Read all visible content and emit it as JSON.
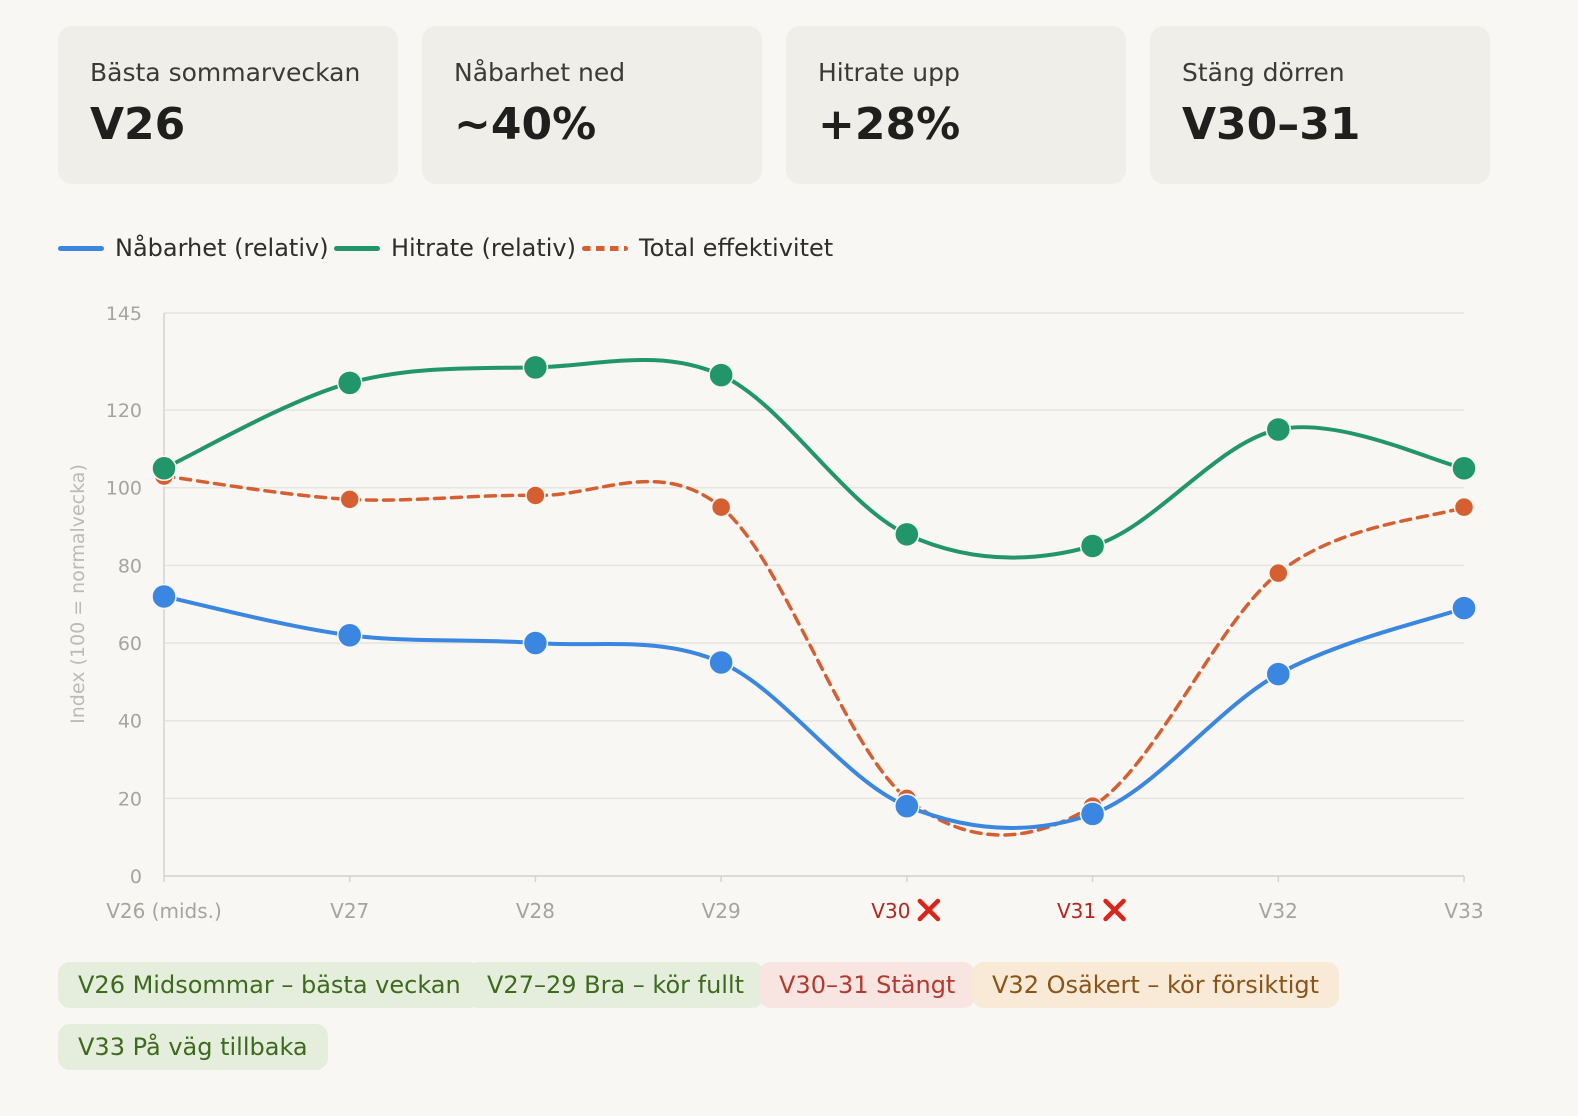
{
  "kpis": [
    {
      "label": "Bästa sommarveckan",
      "value": "V26"
    },
    {
      "label": "Nåbarhet ned",
      "value": "~40%"
    },
    {
      "label": "Hitrate upp",
      "value": "+28%"
    },
    {
      "label": "Stäng dörren",
      "value": "V30–31"
    }
  ],
  "legend": [
    {
      "label": "Nåbarhet (relativ)",
      "color": "#3a86e0",
      "style": "solid"
    },
    {
      "label": "Hitrate (relativ)",
      "color": "#23956b",
      "style": "solid"
    },
    {
      "label": "Total effektivitet",
      "color": "#d65f32",
      "style": "dashed"
    }
  ],
  "chart_data": {
    "type": "line",
    "categories": [
      "V26 (mids.)",
      "V27",
      "V28",
      "V29",
      "V30",
      "V31",
      "V32",
      "V33"
    ],
    "closed_categories": [
      "V30",
      "V31"
    ],
    "closed_marker": "✖",
    "closed_marker_icon": "red-cross-icon",
    "ylabel": "Index (100 = normalvecka)",
    "ylim": [
      0,
      145
    ],
    "yticks": [
      0,
      20,
      40,
      60,
      80,
      100,
      120,
      145
    ],
    "grid": true,
    "legend_position": "top-left",
    "series": [
      {
        "name": "Nåbarhet (relativ)",
        "color": "#3a86e0",
        "style": "solid",
        "values": [
          72,
          62,
          60,
          55,
          18,
          16,
          52,
          69
        ]
      },
      {
        "name": "Hitrate (relativ)",
        "color": "#23956b",
        "style": "solid",
        "values": [
          105,
          127,
          131,
          129,
          88,
          85,
          115,
          105
        ]
      },
      {
        "name": "Total effektivitet",
        "color": "#d65f32",
        "style": "dashed",
        "values": [
          103,
          97,
          98,
          95,
          20,
          18,
          78,
          95
        ]
      }
    ]
  },
  "tags": [
    {
      "label": "V26 Midsommar – bästa veckan",
      "kind": "good"
    },
    {
      "label": "V27–29 Bra – kör fullt",
      "kind": "good"
    },
    {
      "label": "V30–31 Stängt",
      "kind": "bad"
    },
    {
      "label": "V32 Osäkert – kör försiktigt",
      "kind": "warn"
    },
    {
      "label": "V33 På väg tillbaka",
      "kind": "good"
    }
  ]
}
